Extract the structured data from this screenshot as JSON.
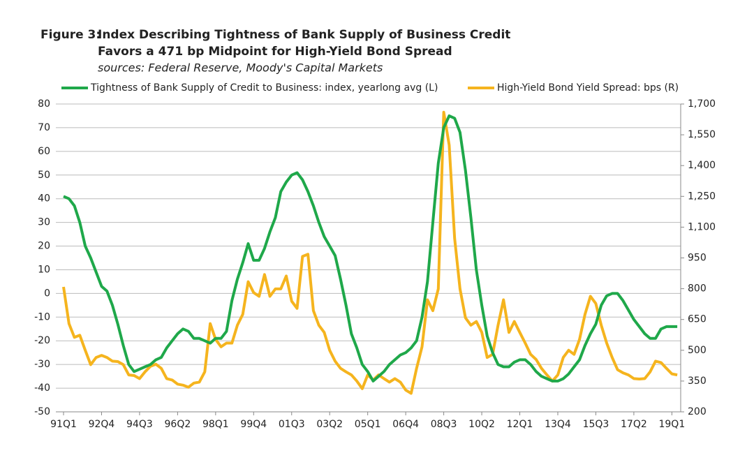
{
  "chart_data": {
    "type": "line",
    "figure_label": "Figure 3:",
    "title": [
      "Index Describing Tightness of Bank Supply of Business Credit",
      "Favors a 471 bp Midpoint for High-Yield Bond Spread"
    ],
    "subtitle": "sources: Federal Reserve, Moody's Capital Markets",
    "categories": [
      "91Q1",
      null,
      null,
      null,
      null,
      null,
      null,
      "92Q4",
      null,
      null,
      null,
      null,
      null,
      null,
      "94Q3",
      null,
      null,
      null,
      null,
      null,
      null,
      "96Q2",
      null,
      null,
      null,
      null,
      null,
      null,
      "98Q1",
      null,
      null,
      null,
      null,
      null,
      null,
      "99Q4",
      null,
      null,
      null,
      null,
      null,
      null,
      "01Q3",
      null,
      null,
      null,
      null,
      null,
      null,
      "03Q2",
      null,
      null,
      null,
      null,
      null,
      null,
      "05Q1",
      null,
      null,
      null,
      null,
      null,
      null,
      "06Q4",
      null,
      null,
      null,
      null,
      null,
      null,
      "08Q3",
      null,
      null,
      null,
      null,
      null,
      null,
      "10Q2",
      null,
      null,
      null,
      null,
      null,
      null,
      "12Q1",
      null,
      null,
      null,
      null,
      null,
      null,
      "13Q4",
      null,
      null,
      null,
      null,
      null,
      null,
      "15Q3",
      null,
      null,
      null,
      null,
      null,
      null,
      "17Q2",
      null,
      null,
      null,
      null,
      null,
      null,
      "19Q1",
      null
    ],
    "series": [
      {
        "name": "Tightness of Bank Supply of Credit to Business: index, yearlong avg (L)",
        "color": "#1fa84a",
        "axis": "y",
        "values": [
          41,
          40,
          37,
          30,
          20,
          15,
          9,
          3,
          1,
          -5,
          -13,
          -22,
          -30,
          -33,
          -32,
          -31,
          -30,
          -28,
          -27,
          -23,
          -20,
          -17,
          -15,
          -16,
          -19,
          -19,
          -20,
          -21,
          -19,
          -19,
          -16,
          -3,
          6,
          13,
          21,
          14,
          14,
          19,
          26,
          32,
          43,
          47,
          50,
          51,
          48,
          43,
          37,
          30,
          24,
          20,
          16,
          6,
          -5,
          -17,
          -23,
          -30,
          -33,
          -37,
          -35,
          -33,
          -30,
          -28,
          -26,
          -25,
          -23,
          -20,
          -10,
          5,
          30,
          55,
          70,
          75,
          74,
          68,
          52,
          32,
          10,
          -5,
          -18,
          -25,
          -30,
          -31,
          -31,
          -29,
          -28,
          -28,
          -30,
          -33,
          -35,
          -36,
          -37,
          -37,
          -36,
          -34,
          -31,
          -28,
          -22,
          -17,
          -13,
          -5,
          -1,
          0,
          0,
          -3,
          -7,
          -11,
          -14,
          -17,
          -19,
          -19,
          -15,
          -14,
          -14,
          -14
        ]
      },
      {
        "name": "High-Yield Bond Yield Spread: bps (R)",
        "color": "#f5b41e",
        "axis": "y2",
        "values": [
          809,
          630,
          563,
          573,
          500,
          430,
          465,
          475,
          465,
          447,
          445,
          430,
          380,
          377,
          362,
          395,
          422,
          432,
          412,
          362,
          355,
          335,
          330,
          320,
          340,
          345,
          395,
          630,
          553,
          517,
          535,
          535,
          622,
          675,
          834,
          781,
          763,
          869,
          763,
          799,
          799,
          862,
          739,
          704,
          957,
          968,
          693,
          622,
          587,
          500,
          447,
          412,
          395,
          380,
          350,
          313,
          380,
          355,
          380,
          362,
          345,
          362,
          345,
          306,
          290,
          412,
          517,
          746,
          693,
          799,
          1660,
          1500,
          1045,
          799,
          658,
          622,
          640,
          587,
          465,
          480,
          622,
          746,
          587,
          640,
          587,
          535,
          480,
          455,
          412,
          380,
          350,
          380,
          465,
          500,
          480,
          553,
          675,
          763,
          728,
          622,
          535,
          465,
          405,
          390,
          380,
          362,
          360,
          362,
          395,
          447,
          440,
          412,
          385,
          380
        ]
      }
    ],
    "ylim": [
      -50,
      80
    ],
    "yticks": [
      -50,
      -40,
      -30,
      -20,
      -10,
      0,
      10,
      20,
      30,
      40,
      50,
      60,
      70,
      80
    ],
    "y2lim": [
      200,
      1700
    ],
    "y2ticks": [
      200,
      350,
      500,
      650,
      800,
      950,
      {
        "value": 1100,
        "label": "1,100"
      },
      {
        "value": 1250,
        "label": "1,250"
      },
      {
        "value": 1400,
        "label": "1,400"
      },
      {
        "value": 1550,
        "label": "1,550"
      },
      {
        "value": 1700,
        "label": "1,700"
      }
    ],
    "grid": true,
    "legend": "top"
  }
}
